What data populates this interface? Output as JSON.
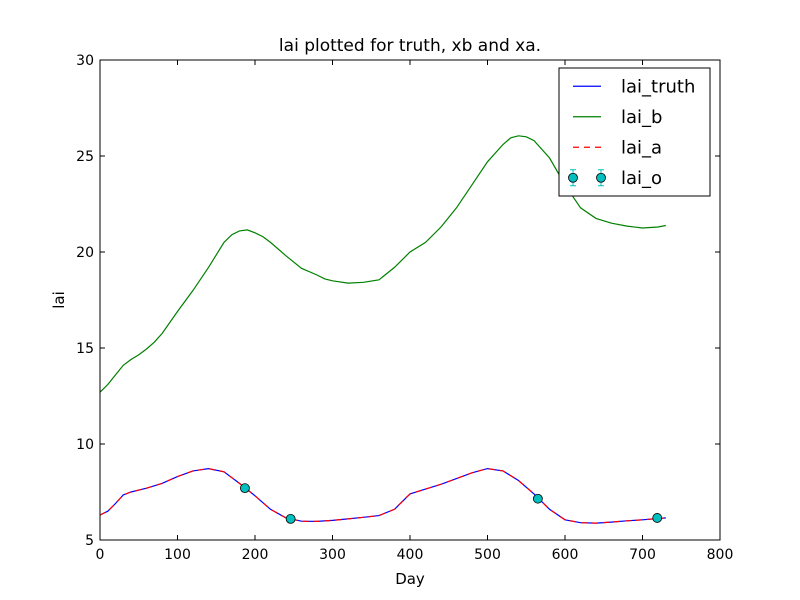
{
  "chart_data": {
    "type": "line",
    "title": "lai plotted for truth, xb and xa.",
    "xlabel": "Day",
    "ylabel": "lai",
    "xlim": [
      0,
      800
    ],
    "ylim": [
      5,
      30
    ],
    "xticks": [
      0,
      100,
      200,
      300,
      400,
      500,
      600,
      700,
      800
    ],
    "yticks": [
      5,
      10,
      15,
      20,
      25,
      30
    ],
    "legend_position": "upper right",
    "grid": false,
    "series": [
      {
        "name": "lai_truth",
        "style": "solid",
        "color": "#0000ff",
        "x": [
          0,
          10,
          20,
          30,
          40,
          60,
          80,
          100,
          120,
          140,
          160,
          180,
          200,
          220,
          240,
          260,
          280,
          300,
          320,
          340,
          360,
          380,
          400,
          420,
          440,
          460,
          480,
          500,
          520,
          540,
          560,
          580,
          600,
          620,
          640,
          660,
          680,
          700,
          720,
          730
        ],
        "y": [
          6.3,
          6.5,
          6.9,
          7.35,
          7.5,
          7.7,
          7.95,
          8.3,
          8.6,
          8.72,
          8.55,
          7.95,
          7.3,
          6.6,
          6.15,
          5.98,
          5.97,
          6.02,
          6.1,
          6.18,
          6.27,
          6.6,
          7.4,
          7.65,
          7.9,
          8.2,
          8.5,
          8.72,
          8.6,
          8.1,
          7.4,
          6.6,
          6.05,
          5.9,
          5.88,
          5.93,
          6.0,
          6.05,
          6.12,
          6.15
        ]
      },
      {
        "name": "lai_b",
        "style": "solid",
        "color": "#008000",
        "x": [
          0,
          10,
          20,
          30,
          40,
          50,
          60,
          70,
          80,
          100,
          120,
          140,
          160,
          170,
          180,
          190,
          200,
          210,
          220,
          240,
          260,
          280,
          290,
          300,
          320,
          340,
          360,
          380,
          400,
          420,
          440,
          460,
          480,
          500,
          520,
          530,
          540,
          550,
          560,
          580,
          600,
          620,
          640,
          660,
          680,
          700,
          720,
          730
        ],
        "y": [
          12.7,
          13.1,
          13.6,
          14.1,
          14.4,
          14.65,
          14.95,
          15.3,
          15.75,
          16.9,
          18.0,
          19.2,
          20.5,
          20.9,
          21.1,
          21.15,
          21.0,
          20.8,
          20.5,
          19.8,
          19.15,
          18.8,
          18.6,
          18.5,
          18.38,
          18.42,
          18.55,
          19.2,
          20.0,
          20.5,
          21.3,
          22.3,
          23.5,
          24.7,
          25.6,
          25.95,
          26.05,
          26.0,
          25.8,
          24.9,
          23.5,
          22.3,
          21.75,
          21.5,
          21.35,
          21.25,
          21.3,
          21.38
        ]
      },
      {
        "name": "lai_a",
        "style": "dashed",
        "color": "#ff0000",
        "x": [
          0,
          10,
          20,
          30,
          40,
          60,
          80,
          100,
          120,
          140,
          160,
          180,
          200,
          220,
          240,
          260,
          280,
          300,
          320,
          340,
          360,
          380,
          400,
          420,
          440,
          460,
          480,
          500,
          520,
          540,
          560,
          580,
          600,
          620,
          640,
          660,
          680,
          700,
          720,
          730
        ],
        "y": [
          6.3,
          6.5,
          6.9,
          7.35,
          7.5,
          7.7,
          7.95,
          8.3,
          8.6,
          8.72,
          8.55,
          7.95,
          7.3,
          6.6,
          6.15,
          5.98,
          5.97,
          6.02,
          6.1,
          6.18,
          6.27,
          6.6,
          7.4,
          7.65,
          7.9,
          8.2,
          8.5,
          8.72,
          8.6,
          8.1,
          7.4,
          6.6,
          6.05,
          5.9,
          5.88,
          5.93,
          6.0,
          6.05,
          6.12,
          6.15
        ]
      },
      {
        "name": "lai_o",
        "style": "markers",
        "color": "#00bfbf",
        "x": [
          187,
          246,
          565,
          719
        ],
        "y": [
          7.7,
          6.1,
          7.15,
          6.15
        ]
      }
    ]
  }
}
